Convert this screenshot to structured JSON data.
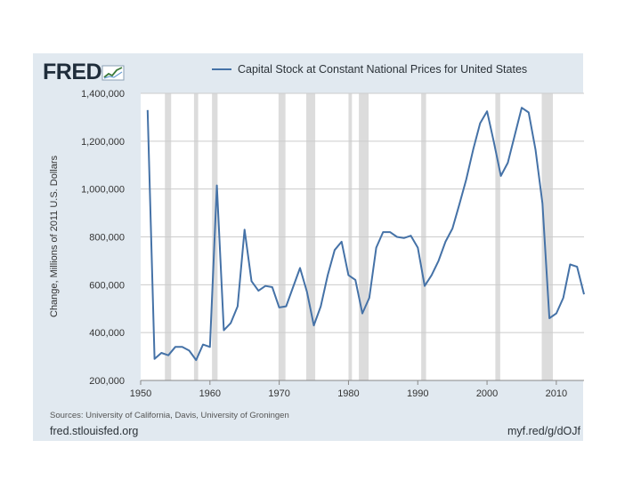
{
  "brand": {
    "logo_text": "FRED",
    "logo_icon": "chart-line-icon"
  },
  "footer": {
    "sources": "Sources: University of California, Davis, University of Groningen",
    "url_left": "fred.stlouisfed.org",
    "url_right": "myf.red/g/dOJf"
  },
  "colors": {
    "line": "#4572a7",
    "panel": "#e1e9f0",
    "plot_bg": "#ffffff",
    "grid": "#cccccc",
    "recession": "#dcdcdc"
  },
  "chart_data": {
    "type": "line",
    "title": "",
    "legend": [
      "Capital Stock at Constant National Prices for United States"
    ],
    "legend_position": "top",
    "xlabel": "",
    "ylabel": "Change, Millions of 2011 U.S. Dollars",
    "xlim": [
      1950,
      2014
    ],
    "ylim": [
      200000,
      1400000
    ],
    "x_ticks": [
      1950,
      1960,
      1970,
      1980,
      1990,
      2000,
      2010
    ],
    "y_ticks": [
      200000,
      400000,
      600000,
      800000,
      1000000,
      1200000,
      1400000
    ],
    "y_tick_labels": [
      "200,000",
      "400,000",
      "600,000",
      "800,000",
      "1,000,000",
      "1,200,000",
      "1,400,000"
    ],
    "grid": true,
    "recessions": [
      [
        1953.5,
        1954.4
      ],
      [
        1957.7,
        1958.3
      ],
      [
        1960.3,
        1961.1
      ],
      [
        1969.9,
        1970.9
      ],
      [
        1973.9,
        1975.2
      ],
      [
        1980.0,
        1980.5
      ],
      [
        1981.5,
        1982.9
      ],
      [
        1990.5,
        1991.2
      ],
      [
        2001.2,
        2001.9
      ],
      [
        2007.9,
        2009.5
      ]
    ],
    "series": [
      {
        "name": "Capital Stock at Constant National Prices for United States",
        "x": [
          1951,
          1952,
          1953,
          1954,
          1955,
          1956,
          1957,
          1958,
          1959,
          1960,
          1961,
          1962,
          1963,
          1964,
          1965,
          1966,
          1967,
          1968,
          1969,
          1970,
          1971,
          1972,
          1973,
          1974,
          1975,
          1976,
          1977,
          1978,
          1979,
          1980,
          1981,
          1982,
          1983,
          1984,
          1985,
          1986,
          1987,
          1988,
          1989,
          1990,
          1991,
          1992,
          1993,
          1994,
          1995,
          1996,
          1997,
          1998,
          1999,
          2000,
          2001,
          2002,
          2003,
          2004,
          2005,
          2006,
          2007,
          2008,
          2009,
          2010,
          2011,
          2012,
          2013,
          2014
        ],
        "values": [
          1330000,
          290000,
          315000,
          305000,
          340000,
          340000,
          325000,
          285000,
          350000,
          340000,
          1015000,
          410000,
          440000,
          510000,
          830000,
          615000,
          575000,
          595000,
          590000,
          505000,
          510000,
          590000,
          670000,
          570000,
          430000,
          510000,
          640000,
          745000,
          780000,
          640000,
          620000,
          480000,
          545000,
          755000,
          820000,
          820000,
          800000,
          795000,
          805000,
          755000,
          595000,
          640000,
          700000,
          780000,
          835000,
          935000,
          1040000,
          1165000,
          1275000,
          1325000,
          1195000,
          1055000,
          1110000,
          1225000,
          1340000,
          1320000,
          1165000,
          940000,
          460000,
          480000,
          545000,
          685000,
          675000,
          560000
        ]
      }
    ]
  }
}
